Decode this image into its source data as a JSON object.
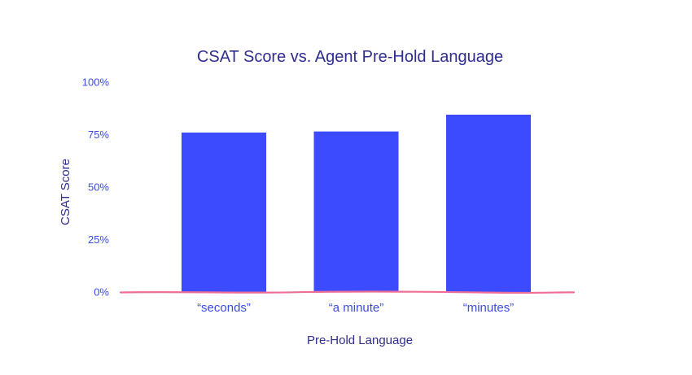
{
  "chart_data": {
    "type": "bar",
    "title": "CSAT Score vs. Agent Pre-Hold Language",
    "xlabel": "Pre-Hold Language",
    "ylabel": "CSAT Score",
    "categories": [
      "“seconds”",
      "“a minute”",
      "“minutes”"
    ],
    "values": [
      76,
      76.5,
      84.5
    ],
    "ylim": [
      0,
      100
    ],
    "yticks": [
      0,
      25,
      50,
      75,
      100
    ],
    "ytick_labels": [
      "0%",
      "25%",
      "50%",
      "75%",
      "100%"
    ],
    "grid": false,
    "legend": "none",
    "colors": {
      "bar": "#3d4bff",
      "title": "#2f2d8f",
      "tick_text": "#3b4ce0",
      "baseline": "#ee6f95"
    }
  }
}
